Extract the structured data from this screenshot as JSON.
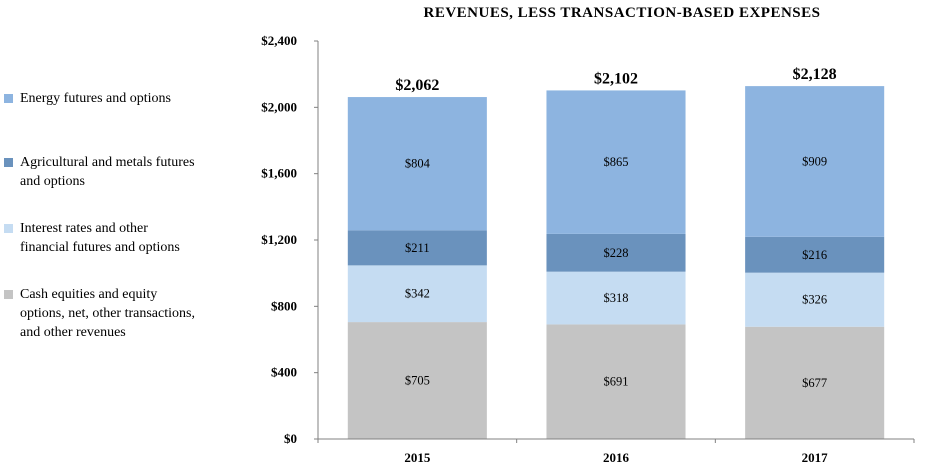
{
  "chart_data": {
    "type": "bar",
    "stacked": true,
    "title": "REVENUES, LESS TRANSACTION-BASED EXPENSES",
    "xlabel": "",
    "ylabel": "",
    "ylim": [
      0,
      2400
    ],
    "yticks": [
      0,
      400,
      800,
      1200,
      1600,
      2000,
      2400
    ],
    "ytick_labels": [
      "$0",
      "$400",
      "$800",
      "$1,200",
      "$1,600",
      "$2,000",
      "$2,400"
    ],
    "categories": [
      "2015",
      "2016",
      "2017"
    ],
    "series": [
      {
        "name": "Cash equities and equity options, net, other transactions, and other revenues",
        "color": "#c4c4c4",
        "values": [
          705,
          691,
          677
        ],
        "labels": [
          "$705",
          "$691",
          "$677"
        ]
      },
      {
        "name": "Interest rates and other financial futures and options",
        "color": "#c5dcf2",
        "values": [
          342,
          318,
          326
        ],
        "labels": [
          "$342",
          "$318",
          "$326"
        ]
      },
      {
        "name": "Agricultural and metals futures and options",
        "color": "#6a92bd",
        "values": [
          211,
          228,
          216
        ],
        "labels": [
          "$211",
          "$228",
          "$216"
        ]
      },
      {
        "name": "Energy futures and options",
        "color": "#8db4e0",
        "values": [
          804,
          865,
          909
        ],
        "labels": [
          "$804",
          "$865",
          "$909"
        ]
      }
    ],
    "totals": [
      2062,
      2102,
      2128
    ],
    "total_labels": [
      "$2,062",
      "$2,102",
      "$2,128"
    ],
    "legend_position": "left",
    "grid": false
  },
  "legend": [
    {
      "lines": [
        "Energy futures and options"
      ],
      "color": "#8db4e0"
    },
    {
      "lines": [
        "Agricultural and metals futures",
        "and options"
      ],
      "color": "#6a92bd"
    },
    {
      "lines": [
        "Interest rates and other",
        "financial futures and options"
      ],
      "color": "#c5dcf2"
    },
    {
      "lines": [
        "Cash equities and equity",
        "options, net, other transactions,",
        "and other revenues"
      ],
      "color": "#c4c4c4"
    }
  ]
}
